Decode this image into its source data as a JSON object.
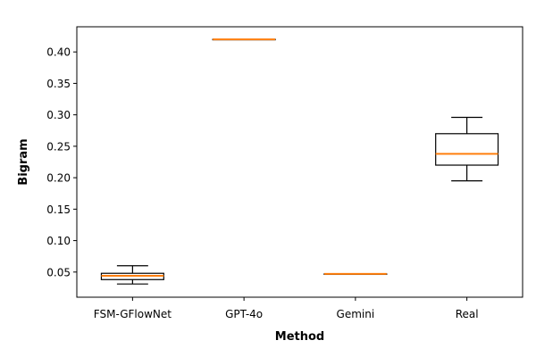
{
  "chart_data": {
    "type": "box",
    "title": "",
    "xlabel": "Method",
    "ylabel": "Bigram",
    "ylim": [
      0.01,
      0.44
    ],
    "yticks": [
      "0.05",
      "0.10",
      "0.15",
      "0.20",
      "0.25",
      "0.30",
      "0.35",
      "0.40"
    ],
    "grid": false,
    "categories": [
      "FSM-GFlowNet",
      "GPT-4o",
      "Gemini",
      "Real"
    ],
    "boxes": [
      {
        "category": "FSM-GFlowNet",
        "whisker_low": 0.031,
        "q1": 0.038,
        "median": 0.044,
        "q3": 0.048,
        "whisker_high": 0.06
      },
      {
        "category": "GPT-4o",
        "whisker_low": 0.42,
        "q1": 0.42,
        "median": 0.42,
        "q3": 0.42,
        "whisker_high": 0.42
      },
      {
        "category": "Gemini",
        "whisker_low": 0.047,
        "q1": 0.047,
        "median": 0.047,
        "q3": 0.047,
        "whisker_high": 0.047
      },
      {
        "category": "Real",
        "whisker_low": 0.195,
        "q1": 0.22,
        "median": 0.238,
        "q3": 0.27,
        "whisker_high": 0.296
      }
    ],
    "colors": {
      "box": "#000000",
      "median": "#ff7f0e"
    }
  }
}
